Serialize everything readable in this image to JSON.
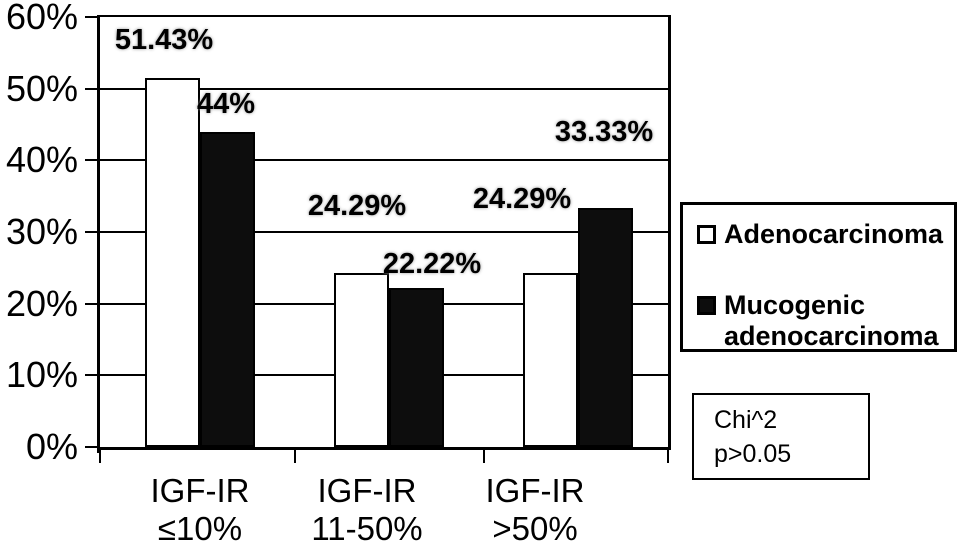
{
  "chart_data": {
    "type": "bar",
    "title": "",
    "categories": [
      [
        "IGF-IR",
        "≤10%"
      ],
      [
        "IGF-IR",
        "11-50%"
      ],
      [
        "IGF-IR",
        ">50%"
      ]
    ],
    "series": [
      {
        "name": "Adenocarcinoma",
        "values": [
          51.43,
          24.29,
          24.29
        ],
        "labels": [
          "51.43%",
          "24.29%",
          "24.29%"
        ],
        "fill": "#ffffff"
      },
      {
        "name": "Mucogenic adenocarcinoma",
        "values": [
          44,
          22.22,
          33.33
        ],
        "labels": [
          "44%",
          "22.22%",
          "33.33%"
        ],
        "fill": "#0d0d0d"
      }
    ],
    "y_ticks": [
      "60%",
      "50%",
      "40%",
      "30%",
      "20%",
      "10%",
      "0%"
    ],
    "ylim": [
      0,
      60
    ],
    "grid": true,
    "legend_position": "right"
  },
  "annotation_box": {
    "line1": "Chi^2",
    "line2": "p>0.05"
  },
  "colors": {
    "axis": "#000000",
    "grid": "#000000",
    "background": "#ffffff",
    "bar_outline": "#000000"
  }
}
